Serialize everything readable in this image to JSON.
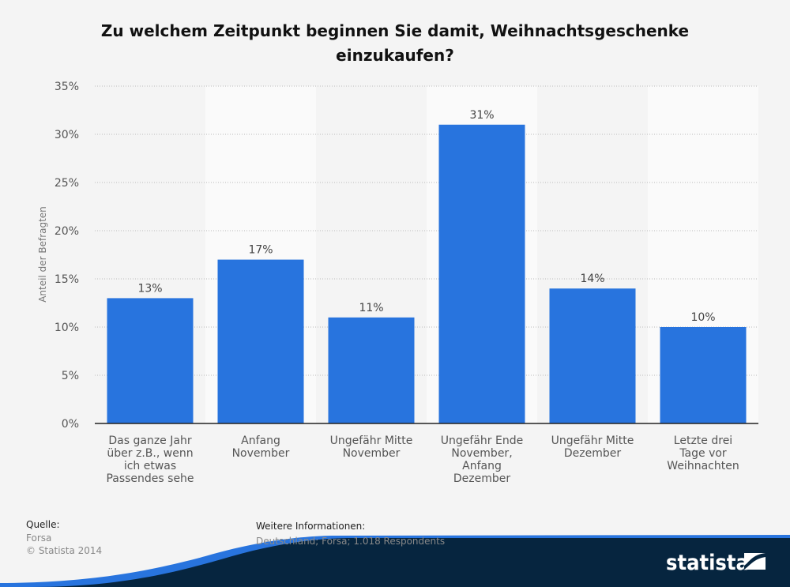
{
  "chart_data": {
    "type": "bar",
    "title": "Zu welchem Zeitpunkt beginnen Sie damit, Weihnachtsgeschenke einzukaufen?",
    "title_lines": [
      "Zu welchem Zeitpunkt beginnen Sie damit, Weihnachtsgeschenke",
      "einzukaufen?"
    ],
    "xlabel": "",
    "ylabel": "Anteil der Befragten",
    "ylim": [
      0,
      35
    ],
    "yticks": [
      0,
      5,
      10,
      15,
      20,
      25,
      30,
      35
    ],
    "ytick_labels": [
      "0%",
      "5%",
      "10%",
      "15%",
      "20%",
      "25%",
      "30%",
      "35%"
    ],
    "grid": true,
    "categories": [
      "Das ganze Jahr über z.B., wenn ich etwas Passendes sehe",
      "Anfang November",
      "Ungefähr Mitte November",
      "Ungefähr Ende November, Anfang Dezember",
      "Ungefähr Mitte Dezember",
      "Letzte drei Tage vor Weihnachten"
    ],
    "category_lines": [
      [
        "Das ganze Jahr",
        "über z.B., wenn",
        "ich etwas",
        "Passendes sehe"
      ],
      [
        "Anfang",
        "November"
      ],
      [
        "Ungefähr Mitte",
        "November"
      ],
      [
        "Ungefähr Ende",
        "November,",
        "Anfang",
        "Dezember"
      ],
      [
        "Ungefähr Mitte",
        "Dezember"
      ],
      [
        "Letzte drei",
        "Tage vor",
        "Weihnachten"
      ]
    ],
    "values": [
      13,
      17,
      11,
      31,
      14,
      10
    ],
    "data_labels": [
      "13%",
      "17%",
      "11%",
      "31%",
      "14%",
      "10%"
    ],
    "bar_color": "#2874de"
  },
  "footer": {
    "source_heading": "Quelle:",
    "source_lines": [
      "Forsa",
      "© Statista 2014"
    ],
    "info_heading": "Weitere Informationen:",
    "info_text": "Deutschland; Forsa; 1.018 Respondents"
  },
  "brand": {
    "name": "statista",
    "dark_color": "#06253f",
    "accent_color": "#2874de"
  }
}
